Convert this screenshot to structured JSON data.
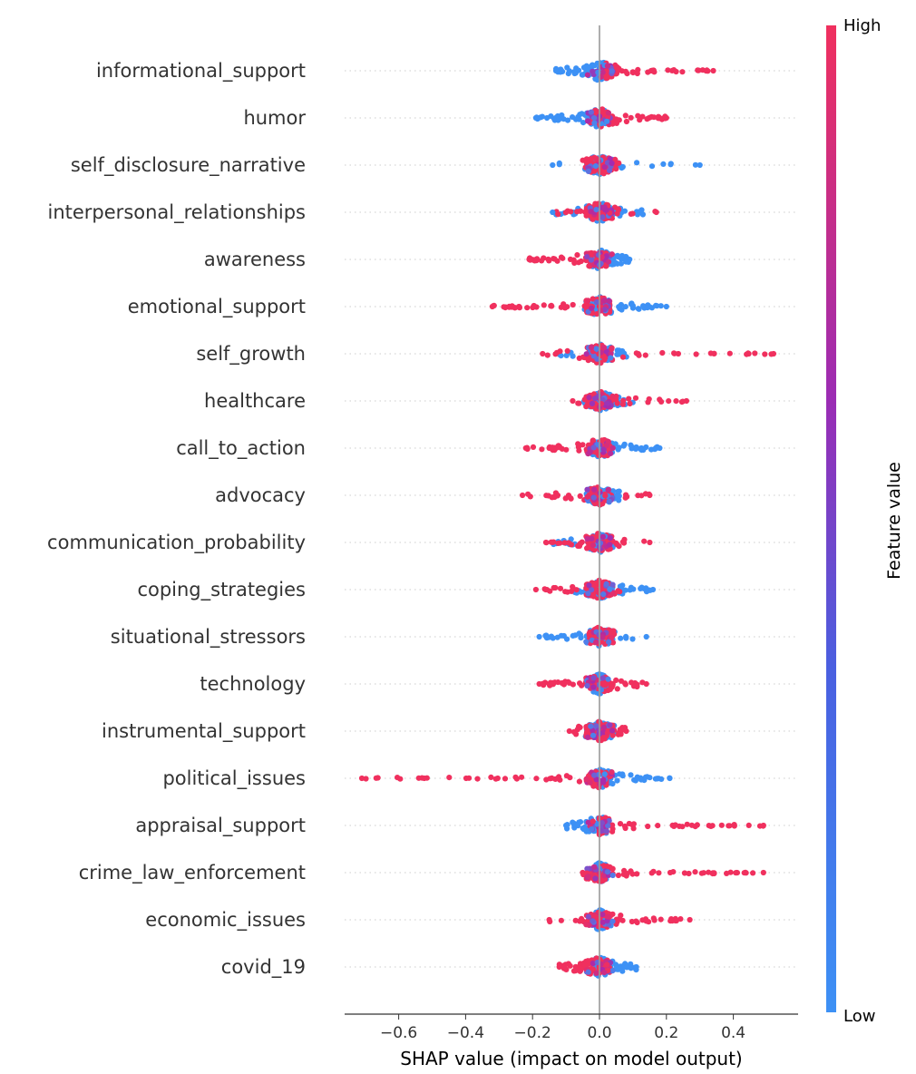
{
  "chart_data": {
    "type": "scatter",
    "subtype": "shap-beeswarm",
    "xlabel": "SHAP value (impact on model output)",
    "xlim": [
      -0.8,
      0.6
    ],
    "xticks": [
      -0.6,
      -0.4,
      -0.2,
      0.0,
      0.2,
      0.4
    ],
    "xtick_labels": [
      "−0.6",
      "−0.4",
      "−0.2",
      "0.0",
      "0.2",
      "0.4"
    ],
    "grid": false,
    "colorbar": {
      "label": "Feature value",
      "high_label": "High",
      "low_label": "Low",
      "high_color": "#ff0052",
      "mid_color": "#a020a0",
      "low_color": "#008bfb"
    },
    "features": [
      {
        "name": "informational_support",
        "high_range": [
          0.02,
          0.34
        ],
        "low_range": [
          -0.13,
          0.02
        ],
        "extent": [
          -0.13,
          0.34
        ]
      },
      {
        "name": "humor",
        "high_range": [
          -0.02,
          0.2
        ],
        "low_range": [
          -0.19,
          0.02
        ],
        "extent": [
          -0.19,
          0.2
        ]
      },
      {
        "name": "self_disclosure_narrative",
        "high_range": [
          -0.06,
          0.06
        ],
        "low_range": [
          -0.14,
          0.3
        ],
        "extent": [
          -0.14,
          0.3
        ]
      },
      {
        "name": "interpersonal_relationships",
        "high_range": [
          -0.13,
          0.17
        ],
        "low_range": [
          -0.14,
          0.13
        ],
        "extent": [
          -0.14,
          0.17
        ]
      },
      {
        "name": "awareness",
        "high_range": [
          -0.21,
          0.02
        ],
        "low_range": [
          -0.02,
          0.09
        ],
        "extent": [
          -0.21,
          0.09
        ]
      },
      {
        "name": "emotional_support",
        "high_range": [
          -0.32,
          0.03
        ],
        "low_range": [
          -0.05,
          0.2
        ],
        "extent": [
          -0.32,
          0.2
        ]
      },
      {
        "name": "self_growth",
        "high_range": [
          -0.17,
          0.52
        ],
        "low_range": [
          -0.13,
          0.1
        ],
        "extent": [
          -0.17,
          0.52
        ]
      },
      {
        "name": "healthcare",
        "high_range": [
          -0.08,
          0.26
        ],
        "low_range": [
          -0.05,
          0.1
        ],
        "extent": [
          -0.08,
          0.26
        ]
      },
      {
        "name": "call_to_action",
        "high_range": [
          -0.22,
          0.03
        ],
        "low_range": [
          -0.02,
          0.18
        ],
        "extent": [
          -0.22,
          0.18
        ]
      },
      {
        "name": "advocacy",
        "high_range": [
          -0.23,
          0.15
        ],
        "low_range": [
          -0.04,
          0.06
        ],
        "extent": [
          -0.23,
          0.15
        ]
      },
      {
        "name": "communication_probability",
        "high_range": [
          -0.16,
          0.15
        ],
        "low_range": [
          -0.14,
          0.05
        ],
        "extent": [
          -0.16,
          0.15
        ]
      },
      {
        "name": "coping_strategies",
        "high_range": [
          -0.19,
          0.07
        ],
        "low_range": [
          -0.08,
          0.16
        ],
        "extent": [
          -0.19,
          0.16
        ]
      },
      {
        "name": "situational_stressors",
        "high_range": [
          -0.03,
          0.05
        ],
        "low_range": [
          -0.18,
          0.14
        ],
        "extent": [
          -0.18,
          0.14
        ]
      },
      {
        "name": "technology",
        "high_range": [
          -0.18,
          0.14
        ],
        "low_range": [
          -0.02,
          0.02
        ],
        "extent": [
          -0.18,
          0.14
        ]
      },
      {
        "name": "instrumental_support",
        "high_range": [
          -0.09,
          0.08
        ],
        "low_range": [
          -0.05,
          0.05
        ],
        "extent": [
          -0.09,
          0.08
        ]
      },
      {
        "name": "political_issues",
        "high_range": [
          -0.71,
          0.02
        ],
        "low_range": [
          -0.01,
          0.21
        ],
        "extent": [
          -0.71,
          0.21
        ]
      },
      {
        "name": "appraisal_support",
        "high_range": [
          0.0,
          0.49
        ],
        "low_range": [
          -0.1,
          0.02
        ],
        "extent": [
          -0.1,
          0.49
        ]
      },
      {
        "name": "crime_law_enforcement",
        "high_range": [
          -0.05,
          0.49
        ],
        "low_range": [
          -0.01,
          0.02
        ],
        "extent": [
          -0.05,
          0.49
        ]
      },
      {
        "name": "economic_issues",
        "high_range": [
          -0.15,
          0.27
        ],
        "low_range": [
          -0.01,
          0.02
        ],
        "extent": [
          -0.15,
          0.27
        ]
      },
      {
        "name": "covid_19",
        "high_range": [
          -0.12,
          0.03
        ],
        "low_range": [
          -0.01,
          0.11
        ],
        "extent": [
          -0.12,
          0.11
        ]
      }
    ]
  }
}
